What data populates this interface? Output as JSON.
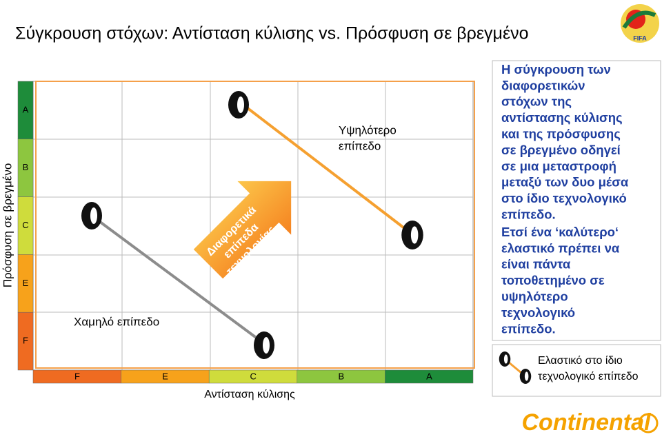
{
  "header": {
    "title": "Σύγκρουση στόχων: Αντίσταση κύλισης vs. Πρόσφυση σε βρεγμένο",
    "logo": "FIFA"
  },
  "diagram": {
    "y_axis_label": "Πρόσφυση σε βρεγμένο",
    "y_grades": [
      "A",
      "B",
      "C",
      "E",
      "F"
    ],
    "x_grades": [
      "F",
      "E",
      "C",
      "B",
      "A"
    ],
    "x_axis_label": "Αντίσταση κύλισης",
    "high_level": [
      "Υψηλότερο",
      "επίπεδο"
    ],
    "low_level": "Χαμηλό επίπεδο",
    "arrow_text": [
      "Διαφορετικά",
      "επίπεδα",
      "τεχνολογίας"
    ]
  },
  "text_panel": {
    "paragraphs": [
      [
        "Η σύγκρουση των",
        "διαφορετικών",
        "στόχων της",
        "αντίστασης κύλισης",
        "και της πρόσφυσης",
        "σε βρεγμένο οδηγεί",
        "σε μια μεταστροφή",
        "μεταξύ των δυο μέσα",
        "στο ίδιο τεχνολογικό",
        "επίπεδο."
      ],
      [
        "Ετσί ένα ‘καλύτερο‘",
        "ελαστικό πρέπει να",
        "είναι πάντα",
        "τοποθετημένο σε",
        "υψηλότερο",
        "τεχνολογικό",
        "επίπεδο."
      ]
    ]
  },
  "legend": [
    "Ελαστικό στο ίδιο",
    "τεχνολογικό επίπεδο"
  ],
  "footer": {
    "brand": "Continental"
  }
}
